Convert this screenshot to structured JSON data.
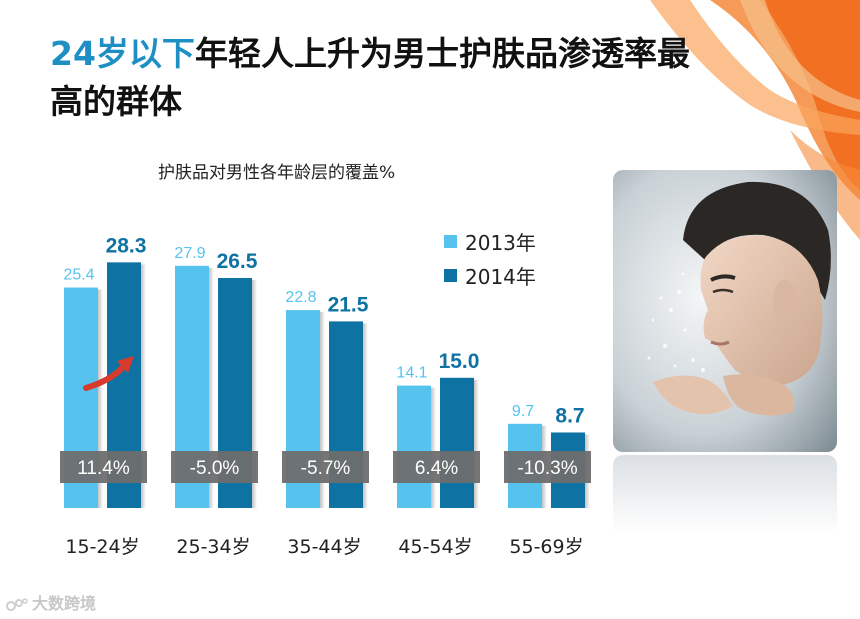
{
  "title": {
    "highlight": "24岁以下",
    "rest": "年轻人上升为男士护肤品渗透率最高的群体"
  },
  "watermark": "大数跨境",
  "photo": {
    "description_icon": "man-splashing-water-photo"
  },
  "colors": {
    "series_2013": "#56c2ee",
    "series_2014": "#0e72a2",
    "change_badge": "#6e6e6e",
    "title_highlight": "#1d8fc4",
    "accent_orange": "#f26b1d"
  },
  "chart_data": {
    "type": "bar",
    "title": "护肤品对男性各年龄层的覆盖%",
    "categories": [
      "15-24岁",
      "25-34岁",
      "35-44岁",
      "45-54岁",
      "55-69岁"
    ],
    "series": [
      {
        "name": "2013年",
        "values": [
          25.4,
          27.9,
          22.8,
          14.1,
          9.7
        ]
      },
      {
        "name": "2014年",
        "values": [
          28.3,
          26.5,
          21.5,
          15.0,
          8.7
        ]
      }
    ],
    "value_labels": {
      "2013年": [
        "25.4",
        "27.9",
        "22.8",
        "14.1",
        "9.7"
      ],
      "2014年": [
        "28.3",
        "26.5",
        "21.5",
        "15.0",
        "8.7"
      ]
    },
    "changes": [
      "11.4%",
      "-5.0%",
      "-5.7%",
      "6.4%",
      "-10.3%"
    ],
    "ylim": [
      0,
      30
    ],
    "legend": "top-right",
    "grid": false
  }
}
